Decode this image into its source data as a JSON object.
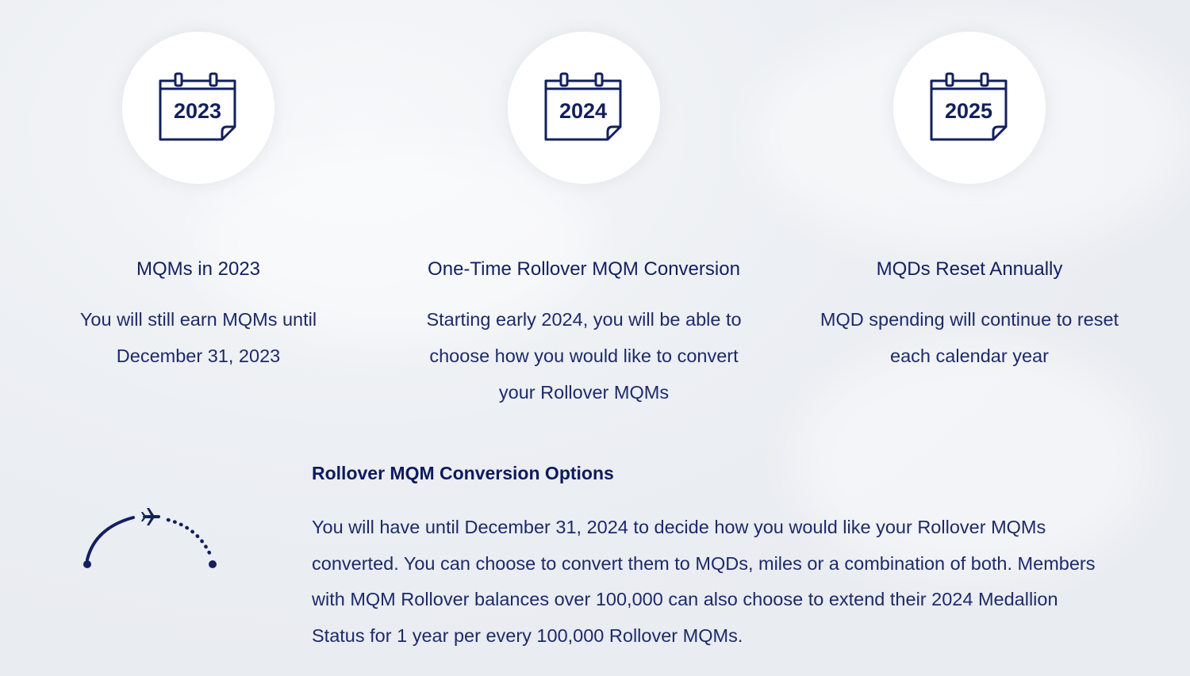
{
  "columns": [
    {
      "year": "2023",
      "title": "MQMs in 2023",
      "lines": [
        "You will still earn MQMs until",
        "December 31, 2023"
      ],
      "icon": "calendar-icon"
    },
    {
      "year": "2024",
      "title": "One-Time Rollover MQM Conversion",
      "lines": [
        "Starting early 2024, you will be able to",
        "choose how you would like to convert",
        "your Rollover MQMs"
      ],
      "icon": "calendar-icon"
    },
    {
      "year": "2025",
      "title": "MQDs Reset Annually",
      "lines": [
        "MQD spending will continue to reset",
        "each calendar year"
      ],
      "icon": "calendar-icon"
    }
  ],
  "options": {
    "title": "Rollover MQM Conversion Options",
    "icon": "flight-path-icon",
    "lines": [
      "You will have until December 31, 2024 to decide how you would like your Rollover MQMs",
      "converted. You can choose to convert them to MQDs, miles or a combination of both. Members",
      "with MQM Rollover balances over 100,000 can also choose to extend their 2024 Medallion",
      "Status for 1 year per every 100,000 Rollover MQMs."
    ]
  },
  "colors": {
    "navy": "#13205e",
    "background": "#eceff3"
  }
}
